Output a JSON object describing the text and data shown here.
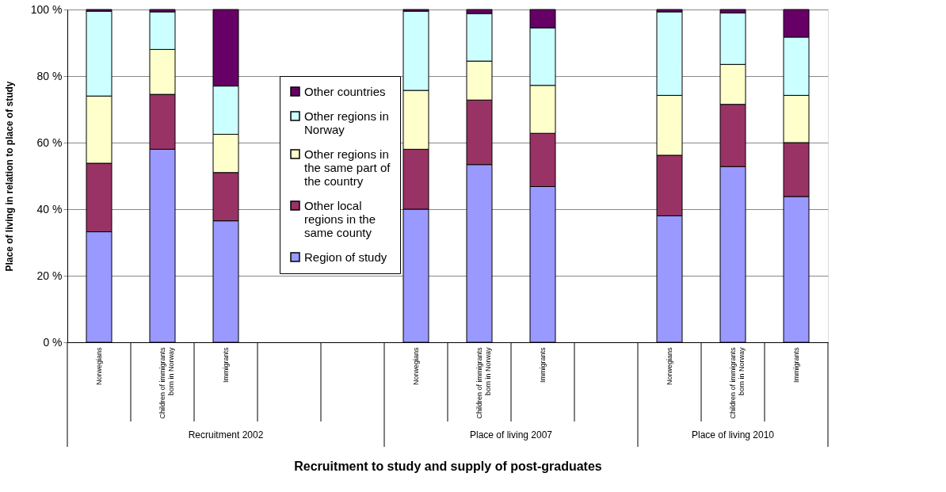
{
  "chart_data": {
    "type": "bar",
    "stacked": true,
    "xlabel": "Recruitment to study and supply of post-graduates",
    "ylabel": "Place of living in relation to place of study",
    "categories": [
      "Norwegians",
      "Children of immigrants born in Norway",
      "Immigrants",
      null,
      null,
      "Norwegians",
      "Children of immigrants born in Norway",
      "Immigrants",
      null,
      "Norwegians",
      "Children of immigrants born in Norway",
      "Immigrants"
    ],
    "series": [
      {
        "name": "Region of study",
        "color": "#9999ff",
        "values": [
          33.2,
          58,
          36.5,
          null,
          null,
          40,
          53.4,
          46.8,
          null,
          38,
          52.8,
          43.8
        ]
      },
      {
        "name": "Other local regions in the same county",
        "color": "#993366",
        "values": [
          20.6,
          16.5,
          14.5,
          null,
          null,
          18,
          19.4,
          16,
          null,
          18.2,
          18.7,
          16.2
        ]
      },
      {
        "name": "Other regions in the same part of the country",
        "color": "#ffffcc",
        "values": [
          20.2,
          13.5,
          11.5,
          null,
          null,
          17.7,
          11.7,
          14.4,
          null,
          18,
          12,
          14.2
        ]
      },
      {
        "name": "Other regions in Norway",
        "color": "#ccffff",
        "values": [
          25.5,
          11.3,
          14.5,
          null,
          null,
          23.8,
          14.3,
          17.3,
          null,
          25.1,
          15.5,
          17.5
        ]
      },
      {
        "name": "Other countries",
        "color": "#660066",
        "values": [
          0.5,
          0.7,
          23,
          null,
          null,
          0.5,
          1.2,
          5.5,
          null,
          0.7,
          1,
          8.3
        ]
      }
    ],
    "ylim": [
      0,
      100
    ],
    "yticks": [
      {
        "value": 0,
        "label": "0 %"
      },
      {
        "value": 20,
        "label": "20 %"
      },
      {
        "value": 40,
        "label": "40 %"
      },
      {
        "value": 60,
        "label": "60 %"
      },
      {
        "value": 80,
        "label": "80 %"
      },
      {
        "value": 100,
        "label": "100 %"
      }
    ],
    "grid": "y",
    "legend": "center",
    "annotations": [
      "Recruitment 2002",
      "Place of living 2007",
      "Place of living 2010"
    ]
  }
}
